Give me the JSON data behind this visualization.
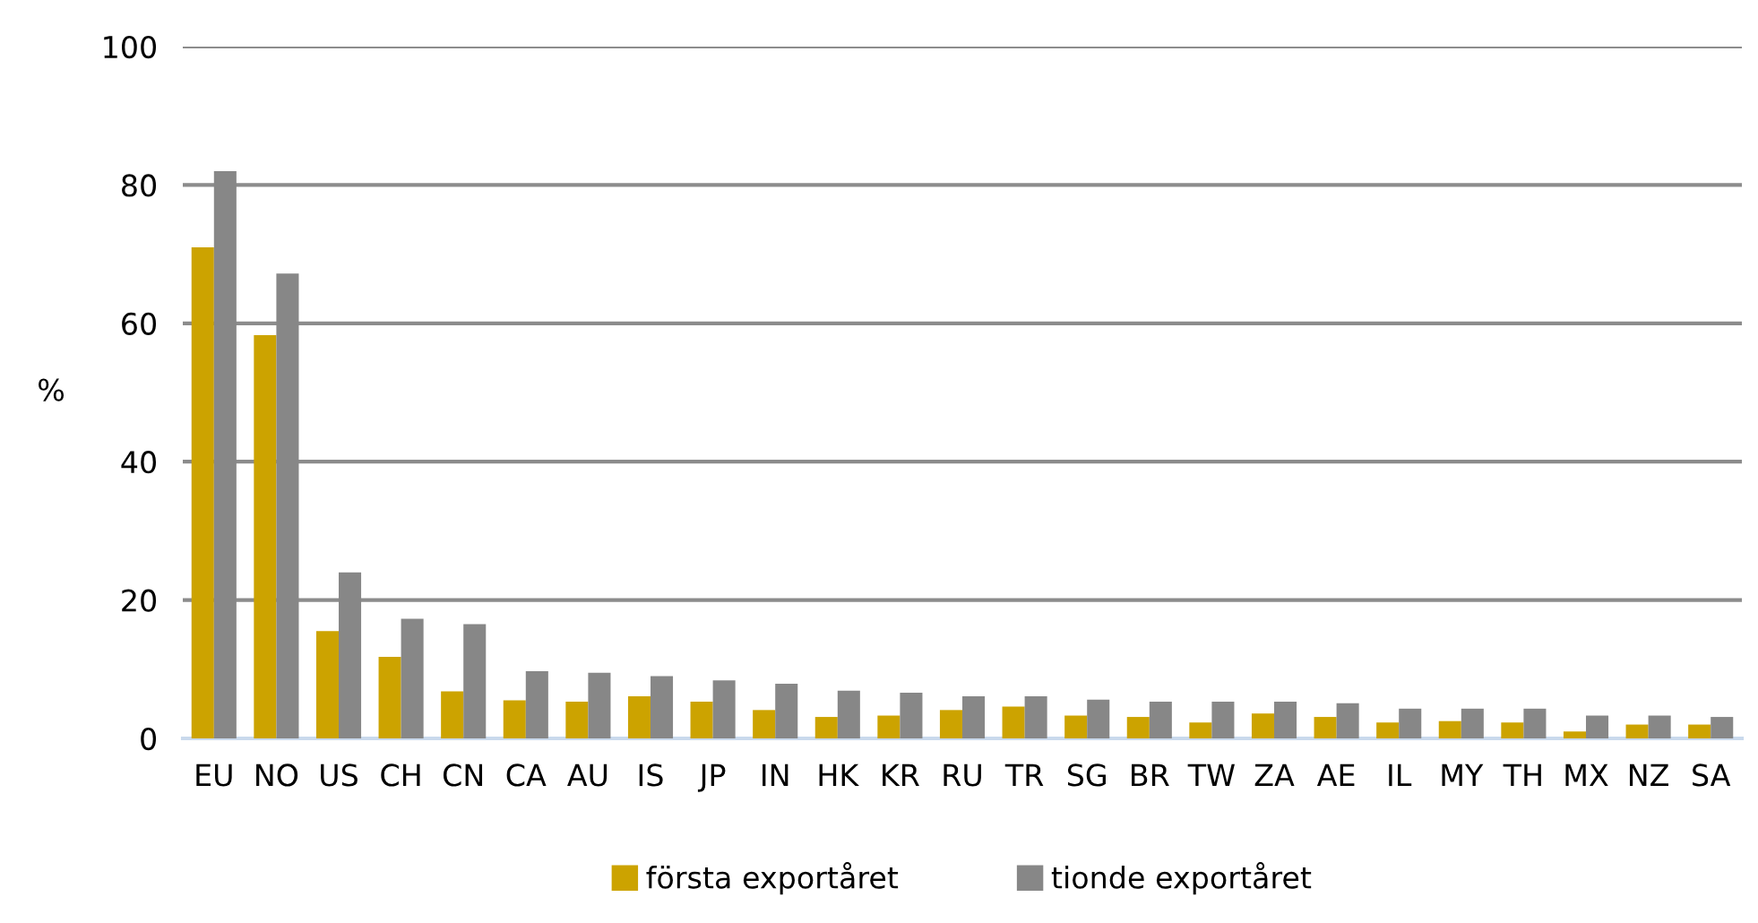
{
  "chart_data": {
    "type": "bar",
    "ylabel": "%",
    "categories": [
      "EU",
      "NO",
      "US",
      "CH",
      "CN",
      "CA",
      "AU",
      "IS",
      "JP",
      "IN",
      "HK",
      "KR",
      "RU",
      "TR",
      "SG",
      "BR",
      "TW",
      "ZA",
      "AE",
      "IL",
      "MY",
      "TH",
      "MX",
      "NZ",
      "SA"
    ],
    "series": [
      {
        "name": "första exportåret",
        "color": "#cca300",
        "values": [
          71,
          58.3,
          15.5,
          11.8,
          6.8,
          5.5,
          5.3,
          6.1,
          5.3,
          4.1,
          3.1,
          3.3,
          4.1,
          4.6,
          3.3,
          3.1,
          2.3,
          3.6,
          3.1,
          2.3,
          2.5,
          2.3,
          1.0,
          2.0,
          2.0
        ]
      },
      {
        "name": "tionde exportåret",
        "color": "#878787",
        "values": [
          82,
          67.2,
          24,
          17.3,
          16.5,
          9.7,
          9.5,
          9.0,
          8.4,
          7.9,
          6.9,
          6.6,
          6.1,
          6.1,
          5.6,
          5.3,
          5.3,
          5.3,
          5.1,
          4.3,
          4.3,
          4.3,
          3.3,
          3.3,
          3.1
        ]
      }
    ],
    "ylim": [
      0,
      100
    ],
    "yticks": [
      0,
      20,
      40,
      60,
      80,
      100
    ],
    "grid": "y",
    "legend": "bottom"
  }
}
